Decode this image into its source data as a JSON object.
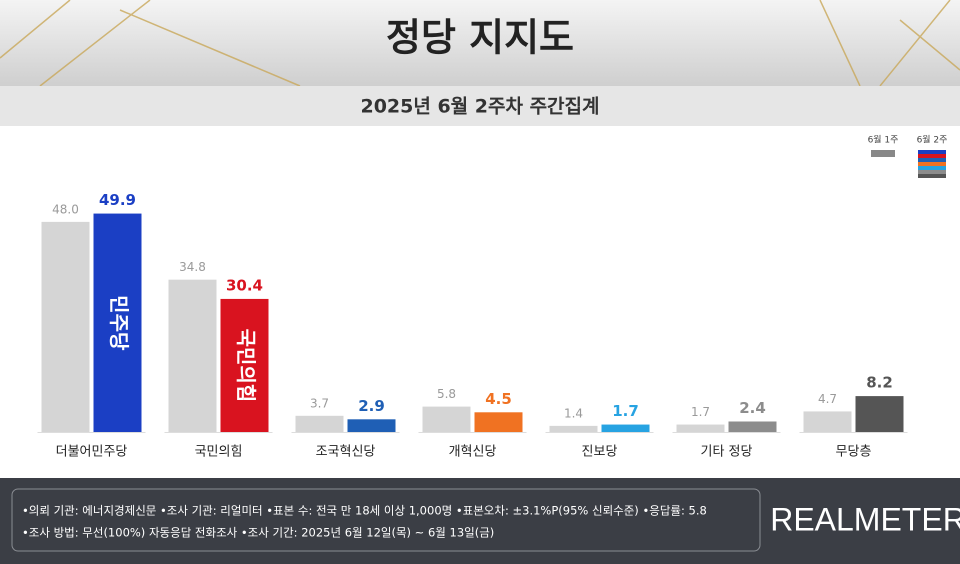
{
  "chart_data": {
    "type": "bar",
    "title": "정당 지지도",
    "subtitle": "2025년 6월 2주차 주간집계",
    "categories": [
      "더불어민주당",
      "국민의힘",
      "조국혁신당",
      "개혁신당",
      "진보당",
      "기타 정당",
      "무당층"
    ],
    "series": [
      {
        "name": "6월 1주",
        "color": "#d5d5d5",
        "values": [
          48.0,
          34.8,
          3.7,
          5.8,
          1.4,
          1.7,
          4.7
        ],
        "value_labels": [
          "48.0",
          "34.8",
          "3.7",
          "5.8",
          "1.4",
          "1.7",
          "4.7"
        ]
      },
      {
        "name": "6월 2주",
        "colors": [
          "#1b3fc4",
          "#d9131f",
          "#1f5fb5",
          "#f07222",
          "#27a3e2",
          "#8c8c8c",
          "#555555"
        ],
        "values": [
          49.9,
          30.4,
          2.9,
          4.5,
          1.7,
          2.4,
          8.2
        ]
      }
    ],
    "bar_texts": [
      "민주당",
      "국민의힘"
    ],
    "ylim": [
      0,
      53
    ],
    "notes": [
      "•의뢰 기관: 에너지경제신문  •조사 기관: 리얼미터 •표본 수: 전국 만 18세 이상 1,000명  •표본오차: ±3.1%P(95% 신뢰수준)  •응답률: 5.8",
      "•조사 방법: 무선(100%) 자동응답 전화조사  •조사 기간: 2025년 6월 12일(목) ~ 6월 13일(금)"
    ],
    "logo": "REALMETER"
  }
}
